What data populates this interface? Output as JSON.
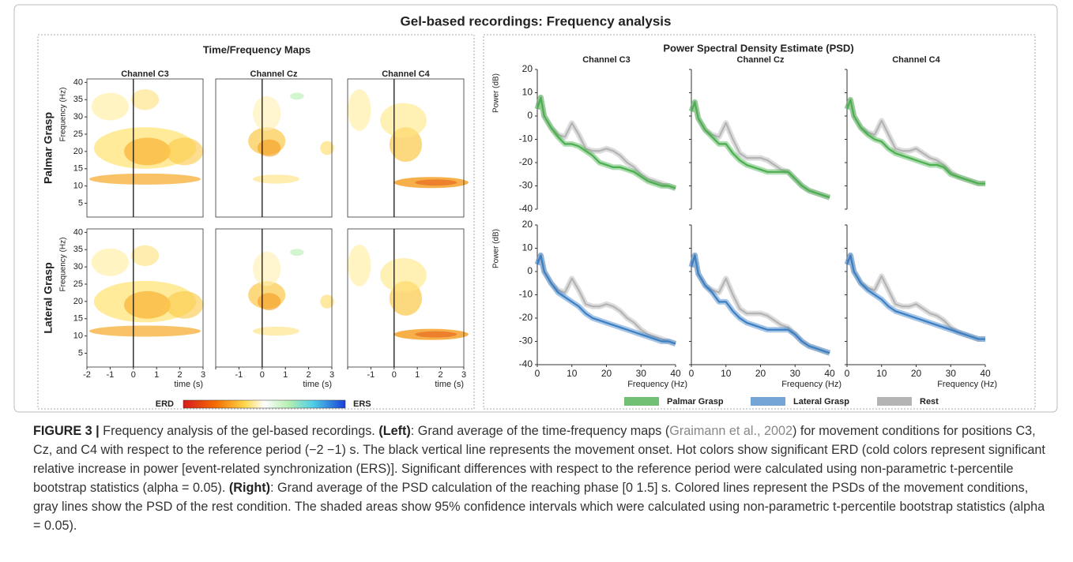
{
  "figure": {
    "title": "Gel-based recordings: Frequency analysis"
  },
  "left_panel": {
    "title": "Time/Frequency Maps",
    "channels": [
      "Channel C3",
      "Channel Cz",
      "Channel C4"
    ],
    "rows": [
      "Palmar Grasp",
      "Lateral Grasp"
    ],
    "y_label": "Frequency (Hz)",
    "x_label": "time (s)",
    "xlim": [
      -2,
      3
    ],
    "ylim": [
      1,
      41
    ],
    "xticks": [
      -2,
      -1,
      0,
      1,
      2,
      3
    ],
    "yticks": [
      5,
      10,
      15,
      20,
      25,
      30,
      35,
      40
    ],
    "colorbar": {
      "low": "ERD",
      "high": "ERS"
    }
  },
  "chart_data": {
    "type": "line",
    "title": "Power Spectral Density Estimate (PSD)",
    "channels": [
      "Channel C3",
      "Channel Cz",
      "Channel C4"
    ],
    "y_label": "Power (dB)",
    "x_label": "Frequency (Hz)",
    "x": [
      0,
      1,
      2,
      4,
      6,
      8,
      10,
      12,
      14,
      16,
      18,
      20,
      22,
      24,
      26,
      28,
      30,
      32,
      34,
      36,
      38,
      40
    ],
    "xlim": [
      0,
      40
    ],
    "ylim": [
      -40,
      20
    ],
    "xticks": [
      0,
      10,
      20,
      30,
      40
    ],
    "yticks": [
      -40,
      -30,
      -20,
      -10,
      0,
      10,
      20
    ],
    "panels": [
      {
        "series": [
          {
            "name": "Palmar Grasp",
            "color": "#4caf50",
            "values": [
              3,
              8,
              0,
              -5,
              -9,
              -12,
              -12,
              -13,
              -15,
              -17,
              -20,
              -21,
              -22,
              -22,
              -23,
              -24,
              -26,
              -28,
              -29,
              -30,
              -30,
              -31
            ]
          },
          {
            "name": "Rest",
            "color": "#b4b4b4",
            "values": [
              3,
              8,
              0,
              -5,
              -8,
              -9,
              -3,
              -8,
              -14,
              -15,
              -15,
              -14,
              -15,
              -17,
              -20,
              -22,
              -25,
              -27,
              -28,
              -29,
              -30,
              -31
            ]
          }
        ]
      },
      {
        "series": [
          {
            "name": "Palmar Grasp",
            "color": "#4caf50",
            "values": [
              2,
              6,
              -1,
              -6,
              -9,
              -12,
              -12,
              -16,
              -19,
              -21,
              -22,
              -23,
              -24,
              -24,
              -24,
              -24,
              -27,
              -30,
              -32,
              -33,
              -34,
              -35
            ]
          },
          {
            "name": "Rest",
            "color": "#b4b4b4",
            "values": [
              2,
              6,
              -1,
              -6,
              -8,
              -9,
              -3,
              -10,
              -16,
              -18,
              -18,
              -18,
              -19,
              -21,
              -23,
              -24,
              -27,
              -30,
              -32,
              -33,
              -34,
              -35
            ]
          }
        ]
      },
      {
        "series": [
          {
            "name": "Palmar Grasp",
            "color": "#4caf50",
            "values": [
              3,
              7,
              0,
              -5,
              -8,
              -10,
              -11,
              -14,
              -16,
              -17,
              -18,
              -19,
              -20,
              -21,
              -21,
              -22,
              -25,
              -26,
              -27,
              -28,
              -29,
              -29
            ]
          },
          {
            "name": "Rest",
            "color": "#b4b4b4",
            "values": [
              3,
              7,
              0,
              -5,
              -7,
              -8,
              -2,
              -8,
              -14,
              -15,
              -15,
              -14,
              -16,
              -18,
              -19,
              -21,
              -24,
              -26,
              -27,
              -28,
              -29,
              -29
            ]
          }
        ]
      },
      {
        "series": [
          {
            "name": "Lateral Grasp",
            "color": "#3b7fc4",
            "values": [
              3,
              7,
              0,
              -5,
              -9,
              -11,
              -13,
              -15,
              -18,
              -20,
              -21,
              -22,
              -23,
              -24,
              -25,
              -26,
              -27,
              -28,
              -29,
              -30,
              -30,
              -31
            ]
          },
          {
            "name": "Rest",
            "color": "#b4b4b4",
            "values": [
              3,
              7,
              0,
              -5,
              -8,
              -9,
              -3,
              -8,
              -14,
              -15,
              -15,
              -14,
              -15,
              -17,
              -20,
              -22,
              -25,
              -27,
              -28,
              -29,
              -30,
              -31
            ]
          }
        ]
      },
      {
        "series": [
          {
            "name": "Lateral Grasp",
            "color": "#3b7fc4",
            "values": [
              2,
              7,
              -1,
              -6,
              -9,
              -13,
              -13,
              -17,
              -20,
              -22,
              -23,
              -24,
              -25,
              -25,
              -25,
              -25,
              -27,
              -30,
              -32,
              -33,
              -34,
              -35
            ]
          },
          {
            "name": "Rest",
            "color": "#b4b4b4",
            "values": [
              2,
              7,
              -1,
              -6,
              -8,
              -9,
              -3,
              -10,
              -16,
              -18,
              -18,
              -18,
              -19,
              -21,
              -23,
              -24,
              -27,
              -30,
              -32,
              -33,
              -34,
              -35
            ]
          }
        ]
      },
      {
        "series": [
          {
            "name": "Lateral Grasp",
            "color": "#3b7fc4",
            "values": [
              3,
              7,
              0,
              -5,
              -8,
              -10,
              -12,
              -15,
              -17,
              -18,
              -19,
              -20,
              -21,
              -22,
              -23,
              -24,
              -25,
              -26,
              -27,
              -28,
              -29,
              -29
            ]
          },
          {
            "name": "Rest",
            "color": "#b4b4b4",
            "values": [
              3,
              7,
              0,
              -5,
              -7,
              -8,
              -2,
              -8,
              -14,
              -15,
              -15,
              -14,
              -16,
              -18,
              -19,
              -21,
              -24,
              -26,
              -27,
              -28,
              -29,
              -29
            ]
          }
        ]
      }
    ]
  },
  "caption": {
    "label": "FIGURE 3 |",
    "t1": " Frequency analysis of the gel-based recordings. ",
    "left": "(Left)",
    "t2": ": Grand average of the time-frequency maps (",
    "ref": "Graimann et al., 2002",
    "t3": ") for movement conditions for positions C3, Cz, and C4 with respect to the reference period (−2 −1) s. The black vertical line represents the movement onset. Hot colors show significant ERD (cold colors represent significant relative increase in power [event-related synchronization (ERS)]. Significant differences with respect to the reference period were calculated using non-parametric t-percentile bootstrap statistics (alpha = 0.05). ",
    "right": "(Right)",
    "t4": ": Grand average of the PSD calculation of the reaching phase [0 1.5] s. Colored lines represent the PSDs of the movement conditions, gray lines show the PSD of the rest condition. The shaded areas show 95% confidence intervals which were calculated using non-parametric t-percentile bootstrap statistics (alpha = 0.05)."
  }
}
